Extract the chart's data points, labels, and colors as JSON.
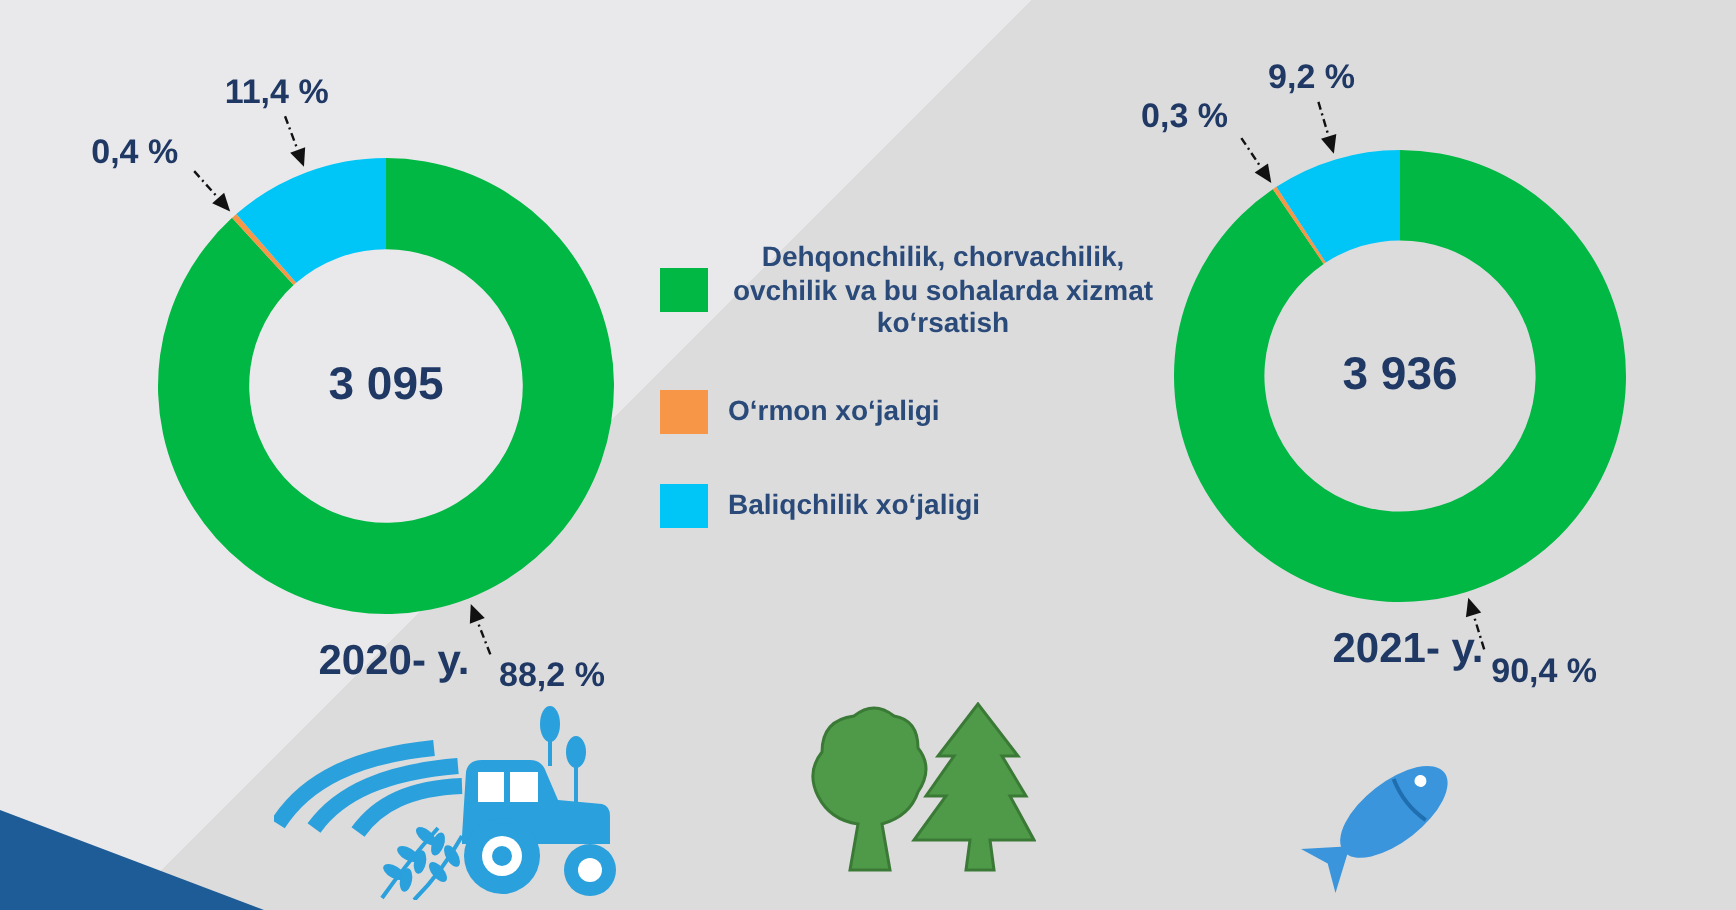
{
  "chart_data": [
    {
      "type": "donut",
      "title": "2020- y.",
      "categories": [
        "Dehqonchilik, chorvachilik, ovchilik va bu sohalarda xizmat ko‘rsatish",
        "O‘rmon xo‘jaligi",
        "Baliqchilik xo‘jaligi"
      ],
      "values": [
        88.2,
        0.4,
        11.4
      ],
      "colors": [
        "#00b843",
        "#f79646",
        "#00c6f8"
      ],
      "value_labels": [
        "88,2 %",
        "0,4 %",
        "11,4 %"
      ],
      "annotations": [
        "3 095"
      ],
      "legend": "right"
    },
    {
      "type": "donut",
      "title": "2021- y.",
      "categories": [
        null,
        null,
        null
      ],
      "values": [
        90.4,
        0.3,
        9.2
      ],
      "colors": [
        "#00b843",
        "#f79646",
        "#00c6f8"
      ],
      "value_labels": [
        "90,4 %",
        "0,3 %",
        "9,2 %"
      ],
      "annotations": [
        "3 936"
      ]
    }
  ]
}
